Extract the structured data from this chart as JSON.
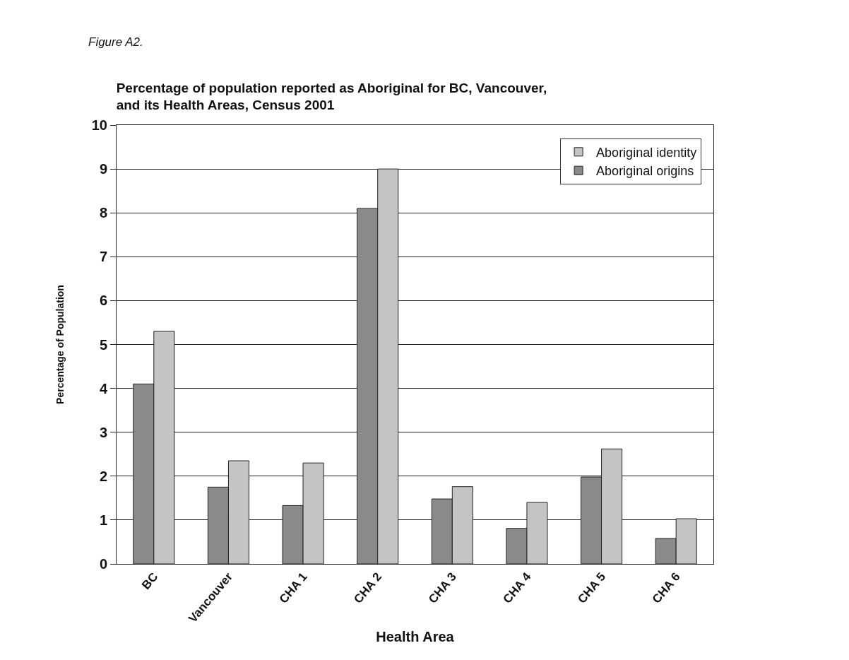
{
  "chart_data": {
    "type": "bar",
    "title": "Percentage of population reported as Aboriginal for BC, Vancouver,\nand its Health Areas, Census 2001",
    "xlabel": "Health Area",
    "ylabel": "Percentage of Population",
    "annotations": [
      "Figure A2."
    ],
    "categories": [
      "BC",
      "Vancouver",
      "CHA 1",
      "CHA 2",
      "CHA 3",
      "CHA 4",
      "CHA 5",
      "CHA 6"
    ],
    "series": [
      {
        "name": "Aboriginal origins",
        "color": "#8a8a8a",
        "values": [
          4.1,
          1.75,
          1.33,
          8.1,
          1.48,
          0.81,
          1.98,
          0.58
        ]
      },
      {
        "name": "Aboriginal identity",
        "color": "#c4c4c4",
        "values": [
          5.3,
          2.35,
          2.3,
          9.0,
          1.76,
          1.4,
          2.62,
          1.03
        ]
      }
    ],
    "ylim": [
      0,
      10
    ],
    "yticks": [
      0,
      1,
      2,
      3,
      4,
      5,
      6,
      7,
      8,
      9,
      10
    ],
    "grid": "y",
    "legend": "top right"
  }
}
